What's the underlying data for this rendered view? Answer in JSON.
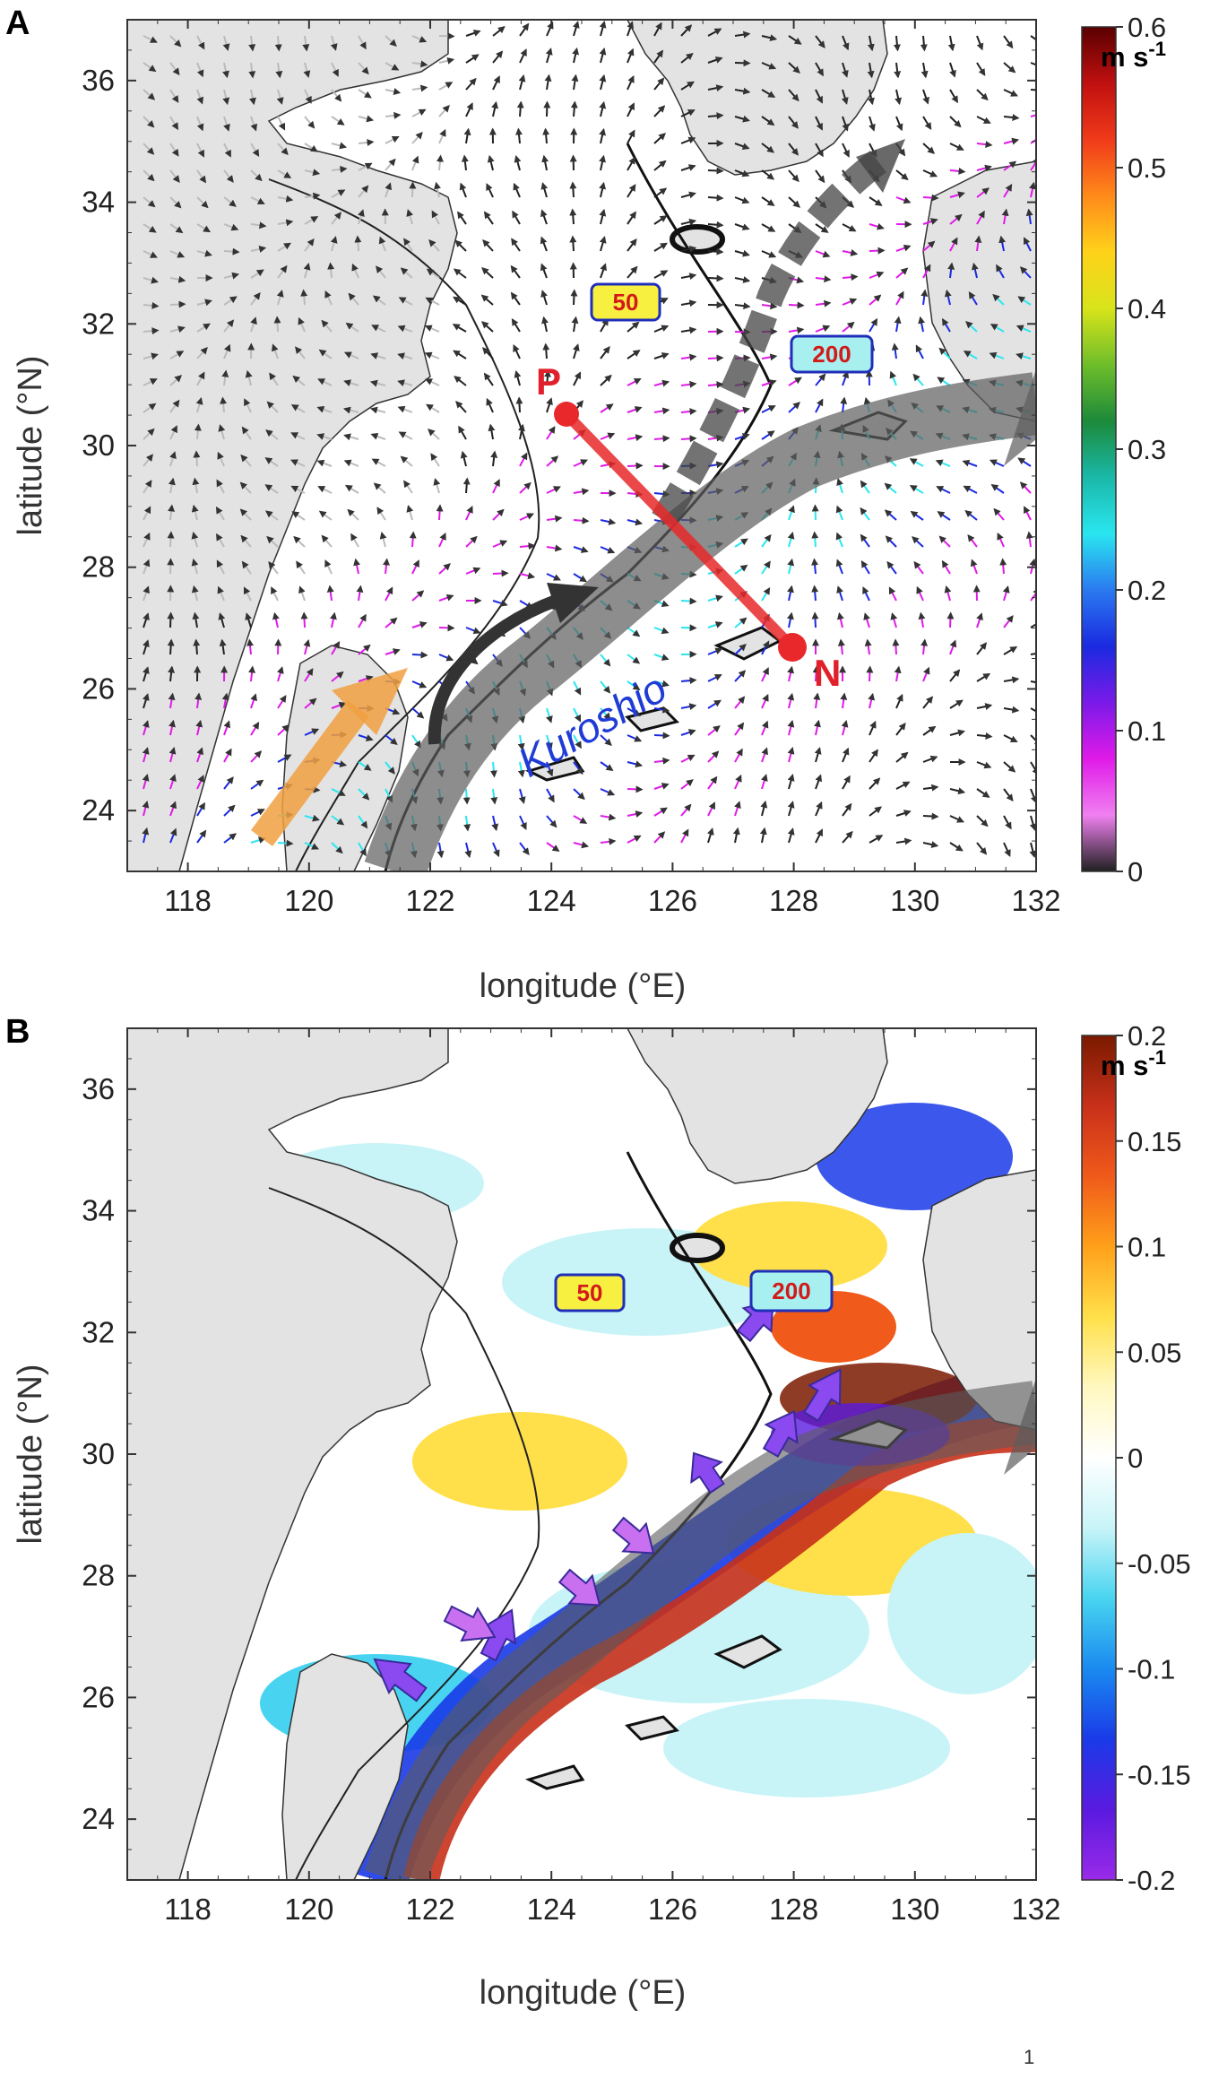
{
  "panels": [
    {
      "letter": "A",
      "xlabel": "longitude (°E)",
      "ylabel": "latitude (°N)",
      "x_ticks": [
        "118",
        "120",
        "122",
        "124",
        "126",
        "128",
        "130",
        "132"
      ],
      "y_ticks": [
        "24",
        "26",
        "28",
        "30",
        "32",
        "34",
        "36"
      ],
      "colorbar": {
        "unit_main": "m s",
        "unit_exp": "-1",
        "ticks": [
          "0.6",
          "0.5",
          "0.4",
          "0.3",
          "0.2",
          "0.1",
          "0"
        ],
        "colors": [
          "#5a0000",
          "#c01010",
          "#f03a1a",
          "#ff8a1a",
          "#ffd21a",
          "#d8e41a",
          "#6fbe2a",
          "#1c8a3a",
          "#1ab8a8",
          "#2ae6f0",
          "#2a7af0",
          "#1a2ae0",
          "#7a1ae8",
          "#e01ae8",
          "#f080f0",
          "#202020"
        ]
      },
      "isobath_labels": [
        "50",
        "200"
      ],
      "points": {
        "p": "P",
        "n": "N"
      },
      "current_label": "Kuroshio"
    },
    {
      "letter": "B",
      "xlabel": "longitude (°E)",
      "ylabel": "latitude (°N)",
      "x_ticks": [
        "118",
        "120",
        "122",
        "124",
        "126",
        "128",
        "130",
        "132"
      ],
      "y_ticks": [
        "24",
        "26",
        "28",
        "30",
        "32",
        "34",
        "36"
      ],
      "colorbar": {
        "unit_main": "m s",
        "unit_exp": "-1",
        "ticks": [
          "0.2",
          "0.15",
          "0.1",
          "0.05",
          "0",
          "-0.05",
          "-0.1",
          "-0.15",
          "-0.2"
        ],
        "colors": [
          "#7a1a00",
          "#c8301a",
          "#f05a1a",
          "#ffa01a",
          "#ffe04a",
          "#fff8c0",
          "#ffffff",
          "#c8f4f8",
          "#48d4f0",
          "#1a8af0",
          "#1a3ae8",
          "#5a1ae0",
          "#9a2ae8"
        ]
      },
      "isobath_labels": [
        "50",
        "200"
      ]
    }
  ],
  "colors": {
    "land": "#e3e3e3",
    "arrow_gray": "#5c5c5c",
    "orange_arrow": "#f0a040",
    "transect": "#e8282a",
    "label_box_50": "#f8f040",
    "label_box_200": "#a8f0f0"
  }
}
